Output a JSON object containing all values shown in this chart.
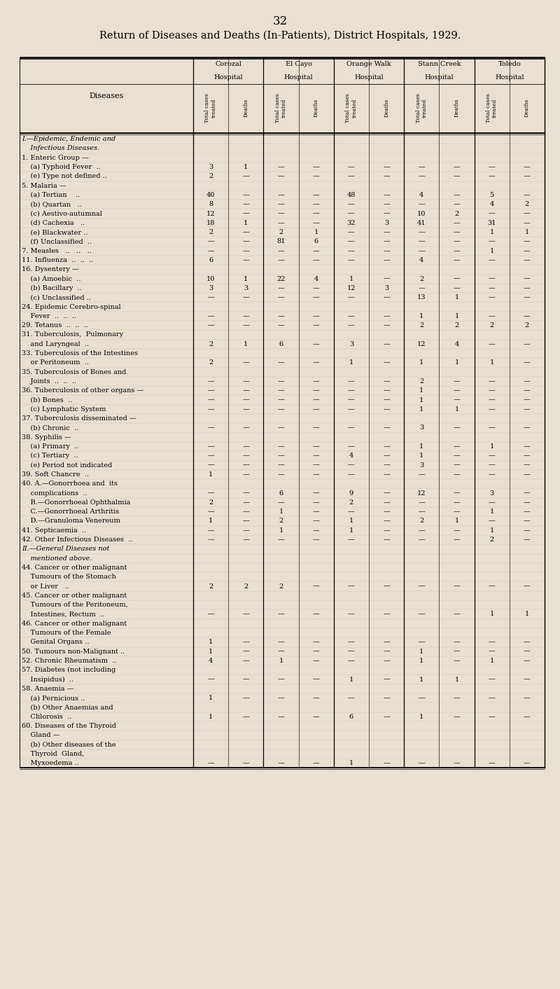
{
  "page_number": "32",
  "title": "Return of Diseases and Deaths (In-Patients), District Hospitals, 1929.",
  "hospitals": [
    "Corozal\nHospital",
    "El Cayo\nHospital",
    "Orange Walk\nHospital",
    "Stann Creek\nHospital",
    "Toledo\nHospital"
  ],
  "col_headers": [
    "Total cases\ntreated",
    "Deaths",
    "Total cases\ntreated",
    "Deaths",
    "Total cases\ntreated",
    "Deaths",
    "Total cases\ntreated",
    "Deaths",
    "Total cases\ntreated",
    "Deaths"
  ],
  "rows": [
    {
      "label": "I.—Epidemic, Endemic and",
      "indent": 0,
      "italic": true,
      "values": [
        "",
        "",
        "",
        "",
        "",
        "",
        "",
        "",
        "",
        ""
      ]
    },
    {
      "label": "    Infectious Diseases.",
      "indent": 0,
      "italic": true,
      "values": [
        "",
        "",
        "",
        "",
        "",
        "",
        "",
        "",
        "",
        ""
      ]
    },
    {
      "label": "1. Enteric Group —",
      "indent": 0,
      "italic": false,
      "values": [
        "",
        "",
        "",
        "",
        "",
        "",
        "",
        "",
        "",
        ""
      ]
    },
    {
      "label": "    (a) Typhoid Fever  ..",
      "indent": 1,
      "italic": false,
      "values": [
        "3",
        "1",
        "—",
        "—",
        "—",
        "—",
        "—",
        "—",
        "—",
        "—"
      ]
    },
    {
      "label": "    (e) Type not defined ..",
      "indent": 1,
      "italic": false,
      "values": [
        "2",
        "—",
        "—",
        "—",
        "—",
        "—",
        "—",
        "—",
        "—",
        "—"
      ]
    },
    {
      "label": "5. Malaria —",
      "indent": 0,
      "italic": false,
      "values": [
        "",
        "",
        "",
        "",
        "",
        "",
        "",
        "",
        "",
        ""
      ]
    },
    {
      "label": "    (a) Tertian    ..",
      "indent": 1,
      "italic": false,
      "values": [
        "40",
        "—",
        "—",
        "—",
        "48",
        "—",
        "4",
        "—",
        "5",
        "—"
      ]
    },
    {
      "label": "    (b) Quartan   ..",
      "indent": 1,
      "italic": false,
      "values": [
        "8",
        "—",
        "—",
        "—",
        "—",
        "—",
        "—",
        "—",
        "4",
        "2"
      ]
    },
    {
      "label": "    (c) Aestivo-autumnal",
      "indent": 1,
      "italic": false,
      "values": [
        "12",
        "—",
        "—",
        "—",
        "—",
        "—",
        "10",
        "2",
        "—",
        "—"
      ]
    },
    {
      "label": "    (d) Cachexia   ..",
      "indent": 1,
      "italic": false,
      "values": [
        "18",
        "1",
        "—",
        "—",
        "32",
        "3",
        "41",
        "—",
        "31",
        "—"
      ]
    },
    {
      "label": "    (e) Blackwater ..",
      "indent": 1,
      "italic": false,
      "values": [
        "2",
        "—",
        "2",
        "1",
        "—",
        "—",
        "—",
        "—",
        "1",
        "1"
      ]
    },
    {
      "label": "    (f) Unclassified  ..",
      "indent": 1,
      "italic": false,
      "values": [
        "—",
        "—",
        "81",
        "6",
        "—",
        "—",
        "—",
        "—",
        "—",
        "—"
      ]
    },
    {
      "label": "7. Measles   ..   ..   ..",
      "indent": 0,
      "italic": false,
      "values": [
        "—",
        "—",
        "—",
        "—",
        "—",
        "—",
        "—",
        "—",
        "1",
        "—"
      ]
    },
    {
      "label": "11. Influenza  ..  ..  ..",
      "indent": 0,
      "italic": false,
      "values": [
        "6",
        "—",
        "—",
        "—",
        "—",
        "—",
        "4",
        "—",
        "—",
        "—"
      ]
    },
    {
      "label": "16. Dysentery —",
      "indent": 0,
      "italic": false,
      "values": [
        "",
        "",
        "",
        "",
        "",
        "",
        "",
        "",
        "",
        ""
      ]
    },
    {
      "label": "    (a) Amoebic  ..",
      "indent": 1,
      "italic": false,
      "values": [
        "10",
        "1",
        "22",
        "4",
        "1",
        "—",
        "2",
        "—",
        "—",
        "—"
      ]
    },
    {
      "label": "    (b) Bacillary  ..",
      "indent": 1,
      "italic": false,
      "values": [
        "3",
        "3",
        "—",
        "—",
        "12",
        "3",
        "—",
        "—",
        "—",
        "—"
      ]
    },
    {
      "label": "    (c) Unclassified ..",
      "indent": 1,
      "italic": false,
      "values": [
        "—",
        "—",
        "—",
        "—",
        "—",
        "—",
        "13",
        "1",
        "—",
        "—"
      ]
    },
    {
      "label": "24. Epidemic Cerebro-spinal",
      "indent": 0,
      "italic": false,
      "values": [
        "",
        "",
        "",
        "",
        "",
        "",
        "",
        "",
        "",
        ""
      ]
    },
    {
      "label": "    Fever  ..  ..  ..",
      "indent": 1,
      "italic": false,
      "values": [
        "—",
        "—",
        "—",
        "—",
        "—",
        "—",
        "1",
        "1",
        "—",
        "—"
      ]
    },
    {
      "label": "29. Tetanus  ..  ..  ..",
      "indent": 0,
      "italic": false,
      "values": [
        "—",
        "—",
        "—",
        "—",
        "—",
        "—",
        "2",
        "2",
        "2",
        "2"
      ]
    },
    {
      "label": "31. Tuberculosis,  Pulmonary",
      "indent": 0,
      "italic": false,
      "values": [
        "",
        "",
        "",
        "",
        "",
        "",
        "",
        "",
        "",
        ""
      ]
    },
    {
      "label": "    and Laryngeal  ..",
      "indent": 1,
      "italic": false,
      "values": [
        "2",
        "1",
        "6",
        "—",
        "3",
        "—",
        "12",
        "4",
        "—",
        "—"
      ]
    },
    {
      "label": "33. Tuberculosis of the Intestines",
      "indent": 0,
      "italic": false,
      "values": [
        "",
        "",
        "",
        "",
        "",
        "",
        "",
        "",
        "",
        ""
      ]
    },
    {
      "label": "    or Peritoneum  ..",
      "indent": 1,
      "italic": false,
      "values": [
        "2",
        "—",
        "—",
        "—",
        "1",
        "—",
        "1",
        "1",
        "1",
        "—"
      ]
    },
    {
      "label": "35. Tuberculosis of Bones and",
      "indent": 0,
      "italic": false,
      "values": [
        "",
        "",
        "",
        "",
        "",
        "",
        "",
        "",
        "",
        ""
      ]
    },
    {
      "label": "    Joints  ..  ..  ..",
      "indent": 1,
      "italic": false,
      "values": [
        "—",
        "—",
        "—",
        "—",
        "—",
        "—",
        "2",
        "—",
        "—",
        "—"
      ]
    },
    {
      "label": "36. Tuberculosis of other organs —",
      "indent": 0,
      "italic": false,
      "values": [
        "—",
        "—",
        "—",
        "—",
        "—",
        "—",
        "1",
        "—",
        "—",
        "—"
      ]
    },
    {
      "label": "    (b) Bones  ..",
      "indent": 1,
      "italic": false,
      "values": [
        "—",
        "—",
        "—",
        "—",
        "—",
        "—",
        "1",
        "—",
        "—",
        "—"
      ]
    },
    {
      "label": "    (c) Lymphatic System",
      "indent": 1,
      "italic": false,
      "values": [
        "—",
        "—",
        "—",
        "—",
        "—",
        "—",
        "1",
        "1",
        "—",
        "—"
      ]
    },
    {
      "label": "37. Tuberculosis disseminated —",
      "indent": 0,
      "italic": false,
      "values": [
        "",
        "",
        "",
        "",
        "",
        "",
        "",
        "",
        "",
        ""
      ]
    },
    {
      "label": "    (b) Chronic  ..",
      "indent": 1,
      "italic": false,
      "values": [
        "—",
        "—",
        "—",
        "—",
        "—",
        "—",
        "3",
        "—",
        "—",
        "—"
      ]
    },
    {
      "label": "38. Syphilis —",
      "indent": 0,
      "italic": false,
      "values": [
        "",
        "",
        "",
        "",
        "",
        "",
        "",
        "",
        "",
        ""
      ]
    },
    {
      "label": "    (a) Primary  ..",
      "indent": 1,
      "italic": false,
      "values": [
        "—",
        "—",
        "—",
        "—",
        "—",
        "—",
        "1",
        "—",
        "1",
        "—"
      ]
    },
    {
      "label": "    (c) Tertiary  ..",
      "indent": 1,
      "italic": false,
      "values": [
        "—",
        "—",
        "—",
        "—",
        "4",
        "—",
        "1",
        "—",
        "—",
        "—"
      ]
    },
    {
      "label": "    (e) Period not indicated",
      "indent": 1,
      "italic": false,
      "values": [
        "—",
        "—",
        "—",
        "—",
        "—",
        "—",
        "3",
        "—",
        "—",
        "—"
      ]
    },
    {
      "label": "39. Soft Chancre  ..",
      "indent": 0,
      "italic": false,
      "values": [
        "1",
        "—",
        "—",
        "—",
        "—",
        "—",
        "—",
        "—",
        "—",
        "—"
      ]
    },
    {
      "label": "40. A.—Gonorrhoea and  its",
      "indent": 0,
      "italic": false,
      "values": [
        "",
        "",
        "",
        "",
        "",
        "",
        "",
        "",
        "",
        ""
      ]
    },
    {
      "label": "    complications  ..",
      "indent": 1,
      "italic": false,
      "values": [
        "—",
        "—",
        "6",
        "—",
        "9",
        "—",
        "12",
        "—",
        "3",
        "—"
      ]
    },
    {
      "label": "    B.—Gonorrhoeal Ophthalmia",
      "indent": 1,
      "italic": false,
      "values": [
        "2",
        "—",
        "—",
        "—",
        "2",
        "—",
        "—",
        "—",
        "—",
        "—"
      ]
    },
    {
      "label": "    C.—Gonorrhoeal Arthritis",
      "indent": 1,
      "italic": false,
      "values": [
        "—",
        "—",
        "1",
        "—",
        "—",
        "—",
        "—",
        "—",
        "1",
        "—"
      ]
    },
    {
      "label": "    D.—Granuloma Venereum",
      "indent": 1,
      "italic": false,
      "values": [
        "1",
        "—",
        "2",
        "—",
        "1",
        "—",
        "2",
        "1",
        "—",
        "—"
      ]
    },
    {
      "label": "41. Septicaemia  ..",
      "indent": 0,
      "italic": false,
      "values": [
        "—",
        "—",
        "1",
        "—",
        "1",
        "—",
        "—",
        "—",
        "1",
        "—"
      ]
    },
    {
      "label": "42. Other Infectious Diseases  ..",
      "indent": 0,
      "italic": false,
      "values": [
        "—",
        "—",
        "—",
        "—",
        "—",
        "—",
        "—",
        "—",
        "2",
        "—"
      ]
    },
    {
      "label": "II.—General Diseases not",
      "indent": 0,
      "italic": true,
      "values": [
        "",
        "",
        "",
        "",
        "",
        "",
        "",
        "",
        "",
        ""
      ]
    },
    {
      "label": "    mentioned above.",
      "indent": 0,
      "italic": true,
      "values": [
        "",
        "",
        "",
        "",
        "",
        "",
        "",
        "",
        "",
        ""
      ]
    },
    {
      "label": "44. Cancer or other malignant",
      "indent": 0,
      "italic": false,
      "values": [
        "",
        "",
        "",
        "",
        "",
        "",
        "",
        "",
        "",
        ""
      ]
    },
    {
      "label": "    Tumours of the Stomach",
      "indent": 1,
      "italic": false,
      "values": [
        "",
        "",
        "",
        "",
        "",
        "",
        "",
        "",
        "",
        ""
      ]
    },
    {
      "label": "    or Liver   ..",
      "indent": 1,
      "italic": false,
      "values": [
        "2",
        "2",
        "2",
        "—",
        "—",
        "—",
        "—",
        "—",
        "—",
        "—"
      ]
    },
    {
      "label": "45. Cancer or other malignant",
      "indent": 0,
      "italic": false,
      "values": [
        "",
        "",
        "",
        "",
        "",
        "",
        "",
        "",
        "",
        ""
      ]
    },
    {
      "label": "    Tumours of the Peritoneum,",
      "indent": 1,
      "italic": false,
      "values": [
        "",
        "",
        "",
        "",
        "",
        "",
        "",
        "",
        "",
        ""
      ]
    },
    {
      "label": "    Intestines, Rectum  ..",
      "indent": 1,
      "italic": false,
      "values": [
        "—",
        "—",
        "—",
        "—",
        "—",
        "—",
        "—",
        "—",
        "1",
        "1"
      ]
    },
    {
      "label": "46. Cancer or other malignant",
      "indent": 0,
      "italic": false,
      "values": [
        "",
        "",
        "",
        "",
        "",
        "",
        "",
        "",
        "",
        ""
      ]
    },
    {
      "label": "    Tumours of the Female",
      "indent": 1,
      "italic": false,
      "values": [
        "",
        "",
        "",
        "",
        "",
        "",
        "",
        "",
        "",
        ""
      ]
    },
    {
      "label": "    Genital Organs ..",
      "indent": 1,
      "italic": false,
      "values": [
        "1",
        "—",
        "—",
        "—",
        "—",
        "—",
        "—",
        "—",
        "—",
        "—"
      ]
    },
    {
      "label": "50. Tumours non-Malignant ..",
      "indent": 0,
      "italic": false,
      "values": [
        "1",
        "—",
        "—",
        "—",
        "—",
        "—",
        "1",
        "—",
        "—",
        "—"
      ]
    },
    {
      "label": "52. Chronic Rheumatism  ..",
      "indent": 0,
      "italic": false,
      "values": [
        "4",
        "—",
        "1",
        "—",
        "—",
        "—",
        "1",
        "—",
        "1",
        "—"
      ]
    },
    {
      "label": "57. Diabetes (not including",
      "indent": 0,
      "italic": false,
      "values": [
        "",
        "",
        "",
        "",
        "",
        "",
        "",
        "",
        "",
        ""
      ]
    },
    {
      "label": "    Insipidus)  ..",
      "indent": 1,
      "italic": false,
      "values": [
        "—",
        "—",
        "—",
        "—",
        "1",
        "—",
        "1",
        "1",
        "—",
        "—"
      ]
    },
    {
      "label": "58. Anaemia —",
      "indent": 0,
      "italic": false,
      "values": [
        "",
        "",
        "",
        "",
        "",
        "",
        "",
        "",
        "",
        ""
      ]
    },
    {
      "label": "    (a) Pernicious ..",
      "indent": 1,
      "italic": false,
      "values": [
        "1",
        "—",
        "—",
        "—",
        "—",
        "—",
        "—",
        "—",
        "—",
        "—"
      ]
    },
    {
      "label": "    (b) Other Anaemias and",
      "indent": 1,
      "italic": false,
      "values": [
        "",
        "",
        "",
        "",
        "",
        "",
        "",
        "",
        "",
        ""
      ]
    },
    {
      "label": "    Chlorosis  ..",
      "indent": 1,
      "italic": false,
      "values": [
        "1",
        "—",
        "—",
        "—",
        "6",
        "—",
        "1",
        "—",
        "—",
        "—"
      ]
    },
    {
      "label": "60. Diseases of the Thyroid",
      "indent": 0,
      "italic": false,
      "values": [
        "",
        "",
        "",
        "",
        "",
        "",
        "",
        "",
        "",
        ""
      ]
    },
    {
      "label": "    Gland —",
      "indent": 0,
      "italic": false,
      "values": [
        "",
        "",
        "",
        "",
        "",
        "",
        "",
        "",
        "",
        ""
      ]
    },
    {
      "label": "    (b) Other diseases of the",
      "indent": 1,
      "italic": false,
      "values": [
        "",
        "",
        "",
        "",
        "",
        "",
        "",
        "",
        "",
        ""
      ]
    },
    {
      "label": "    Thyroid  Gland,",
      "indent": 1,
      "italic": false,
      "values": [
        "",
        "",
        "",
        "",
        "",
        "",
        "",
        "",
        "",
        ""
      ]
    },
    {
      "label": "    Myxoedema ..",
      "indent": 1,
      "italic": false,
      "values": [
        "—",
        "—",
        "—",
        "—",
        "1",
        "—",
        "—",
        "—",
        "—",
        "—"
      ]
    }
  ],
  "bg_color": "#e8e0d0",
  "table_bg": "#f0ece0",
  "header_bg": "#d8d0c0"
}
